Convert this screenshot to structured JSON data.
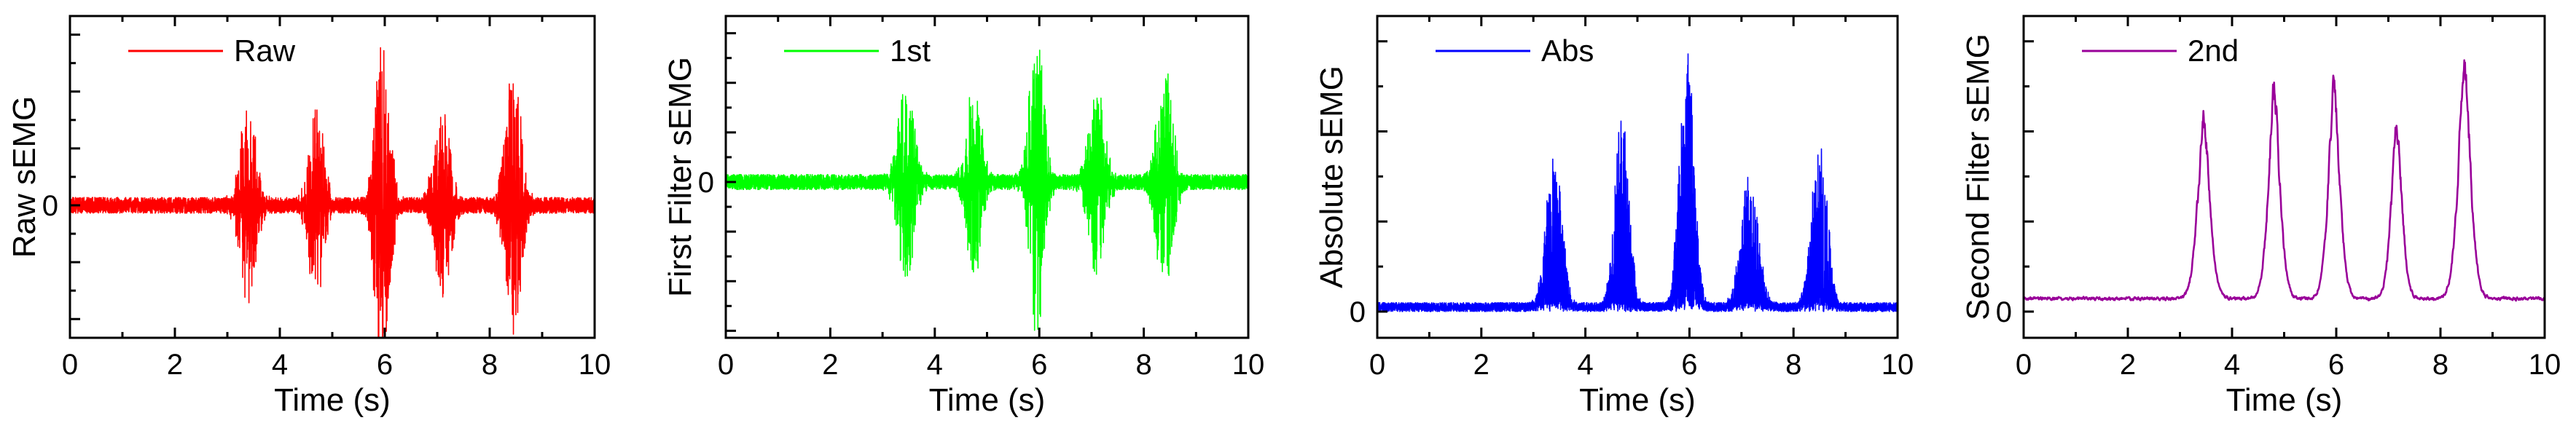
{
  "chart_data": [
    {
      "type": "line",
      "xlabel": "Time (s)",
      "ylabel": "Raw sEMG",
      "xlim": [
        0,
        10
      ],
      "xticks": [
        0,
        2,
        4,
        6,
        8,
        10
      ],
      "yticks": [
        {
          "value": 0,
          "label": "0"
        }
      ],
      "grid": false,
      "legend": "top-left",
      "series": [
        {
          "name": "Raw",
          "color": "#ff0000",
          "kind": "bipolar",
          "baseline": 0,
          "noise": 0.05,
          "bursts": [
            {
              "center": 3.4,
              "width": 0.22,
              "amp": 0.62
            },
            {
              "center": 4.7,
              "width": 0.2,
              "amp": 0.58
            },
            {
              "center": 5.95,
              "width": 0.2,
              "amp": 1.0
            },
            {
              "center": 7.1,
              "width": 0.22,
              "amp": 0.62
            },
            {
              "center": 8.45,
              "width": 0.22,
              "amp": 0.82
            }
          ]
        }
      ]
    },
    {
      "type": "line",
      "xlabel": "Time (s)",
      "ylabel": "First Filter sEMG",
      "xlim": [
        0,
        10
      ],
      "xticks": [
        0,
        2,
        4,
        6,
        8,
        10
      ],
      "yticks": [
        {
          "value": 0,
          "label": "0"
        }
      ],
      "grid": false,
      "legend": "top-left",
      "series": [
        {
          "name": "1st",
          "color": "#00ff00",
          "kind": "bipolar",
          "baseline": 0,
          "noise": 0.05,
          "bursts": [
            {
              "center": 3.45,
              "width": 0.22,
              "amp": 0.65
            },
            {
              "center": 4.75,
              "width": 0.2,
              "amp": 0.62
            },
            {
              "center": 5.95,
              "width": 0.2,
              "amp": 1.0
            },
            {
              "center": 7.1,
              "width": 0.22,
              "amp": 0.62
            },
            {
              "center": 8.4,
              "width": 0.22,
              "amp": 0.72
            }
          ]
        }
      ]
    },
    {
      "type": "line",
      "xlabel": "Time (s)",
      "ylabel": "Absolute sEMG",
      "xlim": [
        0,
        10
      ],
      "xticks": [
        0,
        2,
        4,
        6,
        8,
        10
      ],
      "yticks": [
        {
          "value": 0,
          "label": "0"
        }
      ],
      "grid": false,
      "legend": "top-left",
      "series": [
        {
          "name": "Abs",
          "color": "#0000ff",
          "kind": "rectified",
          "baseline": 0,
          "noise": 0.035,
          "bursts": [
            {
              "center": 3.4,
              "width": 0.22,
              "amp": 0.6
            },
            {
              "center": 4.7,
              "width": 0.2,
              "amp": 0.72
            },
            {
              "center": 5.95,
              "width": 0.2,
              "amp": 1.0
            },
            {
              "center": 7.15,
              "width": 0.24,
              "amp": 0.5
            },
            {
              "center": 8.5,
              "width": 0.22,
              "amp": 0.62
            }
          ]
        }
      ]
    },
    {
      "type": "line",
      "xlabel": "Time (s)",
      "ylabel": "Second Filter sEMG",
      "xlim": [
        0,
        10
      ],
      "xticks": [
        0,
        2,
        4,
        6,
        8,
        10
      ],
      "yticks": [
        {
          "value": 0,
          "label": "0"
        }
      ],
      "grid": false,
      "legend": "top-left",
      "series": [
        {
          "name": "2nd",
          "color": "#990099",
          "kind": "envelope",
          "baseline": 0.05,
          "noise": 0.01,
          "bursts": [
            {
              "center": 3.45,
              "width": 0.16,
              "amp": 0.7
            },
            {
              "center": 4.8,
              "width": 0.15,
              "amp": 0.82
            },
            {
              "center": 5.95,
              "width": 0.15,
              "amp": 0.83
            },
            {
              "center": 7.15,
              "width": 0.14,
              "amp": 0.68
            },
            {
              "center": 8.45,
              "width": 0.16,
              "amp": 0.93
            }
          ]
        }
      ]
    }
  ]
}
